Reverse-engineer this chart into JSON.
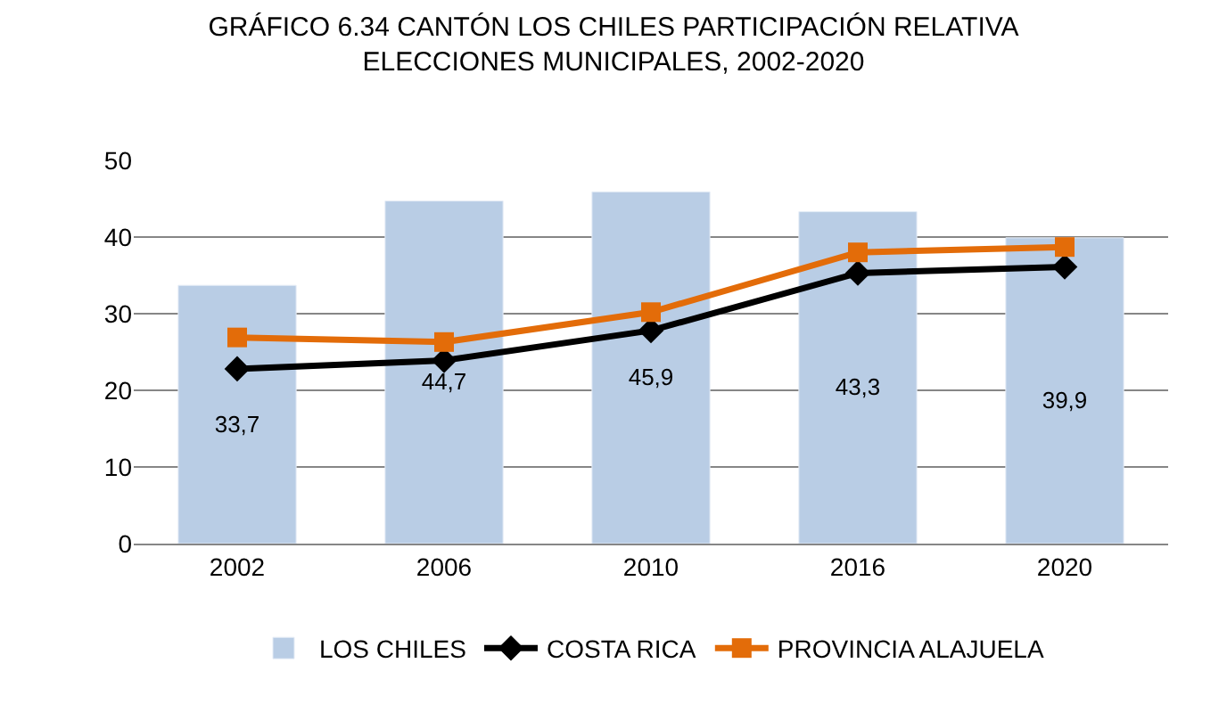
{
  "chart_data": {
    "type": "bar",
    "title": "GRÁFICO 6.34 CANTÓN LOS CHILES PARTICIPACIÓN RELATIVA\nELECCIONES MUNICIPALES, 2002-2020",
    "categories": [
      "2002",
      "2006",
      "2010",
      "2016",
      "2020"
    ],
    "series": [
      {
        "name": "LOS CHILES",
        "color": "#b9cde5",
        "values": [
          33.7,
          44.7,
          45.9,
          43.3,
          39.9
        ],
        "value_labels": [
          "33,7",
          "44,7",
          "45,9",
          "43,3",
          "39,9"
        ]
      },
      {
        "name": "COSTA RICA",
        "type": "line",
        "color": "#000000",
        "marker": "diamond",
        "values": [
          22.8,
          23.9,
          27.8,
          35.3,
          36.1
        ]
      },
      {
        "name": "PROVINCIA ALAJUELA",
        "type": "line",
        "color": "#e36c09",
        "marker": "square",
        "values": [
          26.9,
          26.3,
          30.2,
          38.0,
          38.7
        ]
      }
    ],
    "ylim": [
      0,
      50
    ],
    "yticks": [
      0,
      10,
      20,
      30,
      40,
      50
    ],
    "grid": "y",
    "legend": "bottom"
  }
}
